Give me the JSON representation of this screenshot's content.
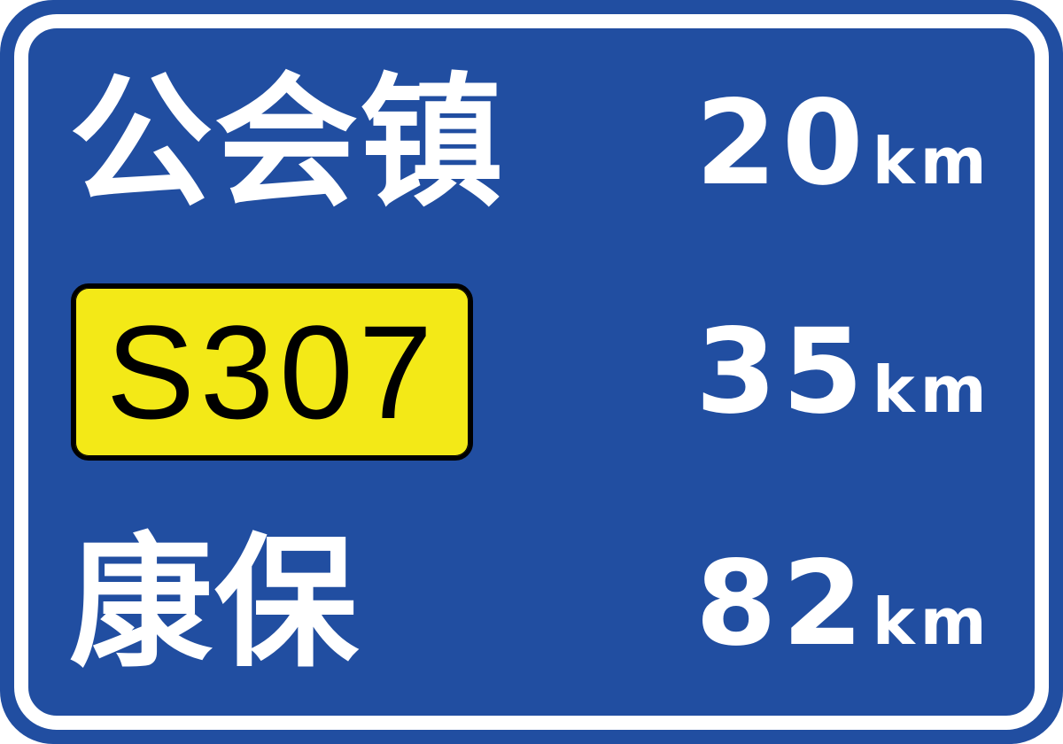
{
  "sign": {
    "colors": {
      "background": "#214ea1",
      "border": "#ffffff",
      "text": "#ffffff",
      "route_plate": "#f3e917",
      "route_text": "#000000"
    },
    "rows": [
      {
        "destination": "公会镇",
        "distance": "20",
        "unit": "km"
      },
      {
        "route": "S307",
        "distance": "35",
        "unit": "km"
      },
      {
        "destination": "康保",
        "distance": "82",
        "unit": "km"
      }
    ]
  }
}
